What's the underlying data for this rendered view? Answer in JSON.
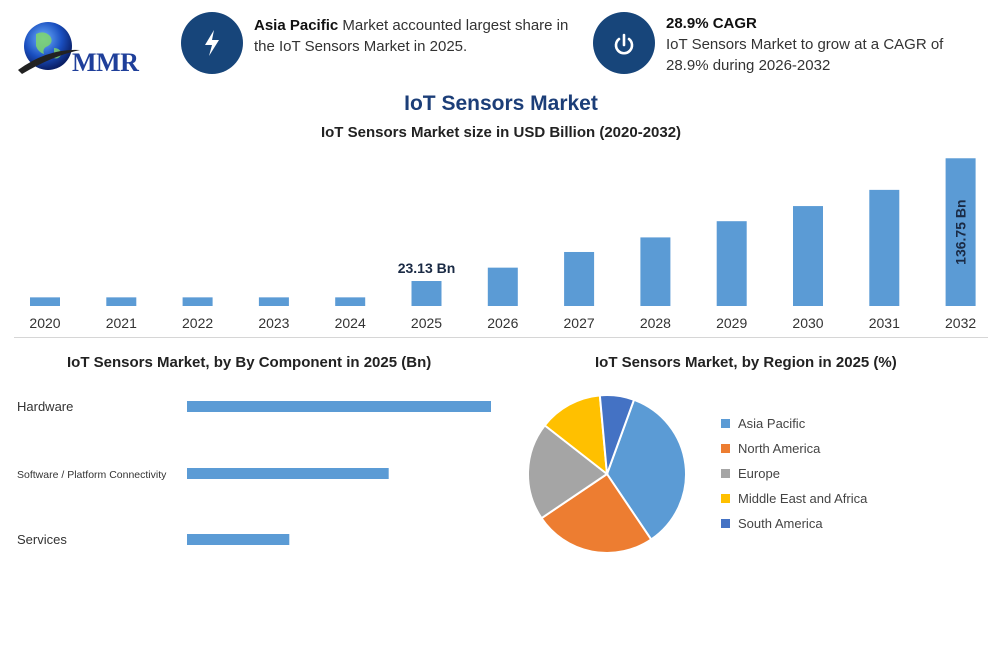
{
  "logo": {
    "text": "MMR"
  },
  "highlight1": {
    "bold": "Asia Pacific",
    "text": " Market accounted largest share in the IoT Sensors Market in 2025."
  },
  "highlight2": {
    "title": "28.9% CAGR",
    "text": "IoT Sensors Market to grow at a CAGR of 28.9% during 2026-2032"
  },
  "main_title": "IoT Sensors Market",
  "main_subtitle": "IoT Sensors Market size in USD Billion (2020-2032)",
  "component_title": "IoT Sensors Market, by By Component in 2025 (Bn)",
  "region_title": "IoT Sensors Market, by Region in 2025 (%)",
  "colors": {
    "bar": "#5b9bd5",
    "icon_circle": "#17457a",
    "title": "#1c3e78"
  },
  "chart_data": [
    {
      "type": "bar",
      "title": "IoT Sensors Market size in USD Billion (2020-2032)",
      "categories": [
        "2020",
        "2021",
        "2022",
        "2023",
        "2024",
        "2025",
        "2026",
        "2027",
        "2028",
        "2029",
        "2030",
        "2031",
        "2032"
      ],
      "values": [
        8,
        8,
        8,
        8,
        8,
        23.13,
        35.5,
        50,
        63.5,
        78.5,
        92.5,
        107.5,
        136.75
      ],
      "data_labels": {
        "2025": "23.13 Bn",
        "2032": "136.75 Bn"
      },
      "ylim": [
        0,
        137
      ]
    },
    {
      "type": "bar",
      "orientation": "horizontal",
      "title": "IoT Sensors Market, by By Component in 2025 (Bn)",
      "categories": [
        "Hardware",
        "Software / Platform Connectivity",
        "Services"
      ],
      "values": [
        10.4,
        6.9,
        3.5
      ],
      "xlim": [
        0,
        10.4
      ]
    },
    {
      "type": "pie",
      "title": "IoT Sensors Market, by Region in 2025 (%)",
      "categories": [
        "Asia Pacific",
        "North America",
        "Europe",
        "Middle East and Africa",
        "South America"
      ],
      "values": [
        35,
        25,
        20,
        13,
        7
      ],
      "colors": [
        "#5b9bd5",
        "#ed7d31",
        "#a5a5a5",
        "#ffc000",
        "#4472c4"
      ]
    }
  ]
}
